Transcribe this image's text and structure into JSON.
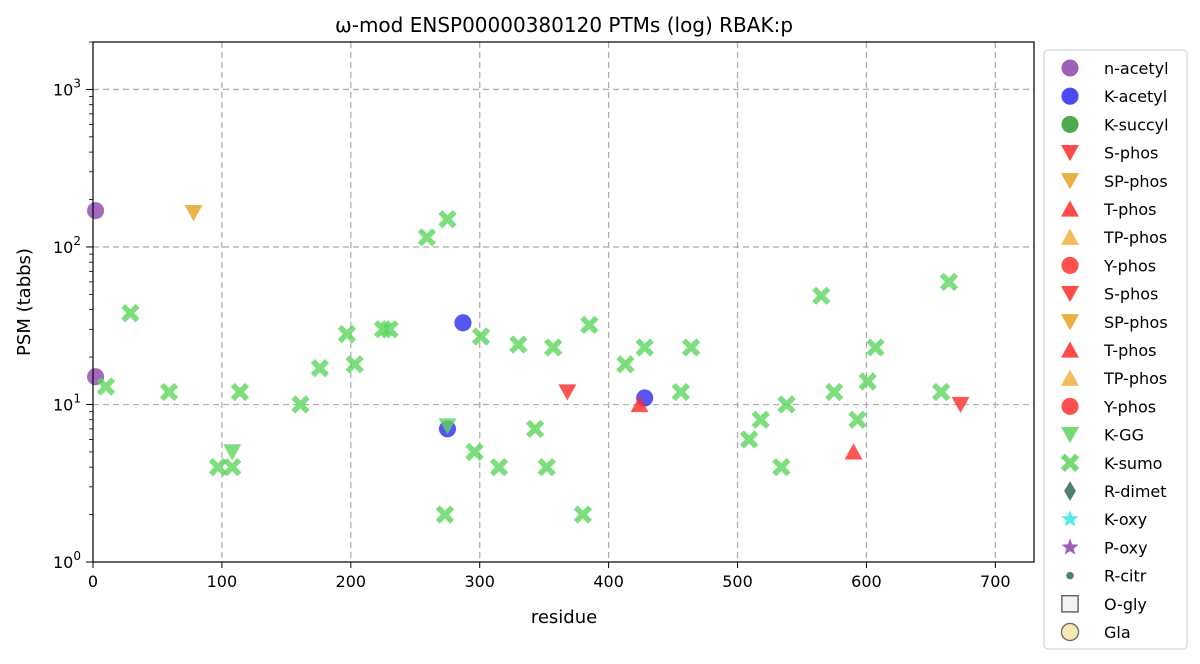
{
  "chart_data": {
    "type": "scatter",
    "title": "ω-mod ENSP00000380120 PTMs (log) RBAK:p",
    "xlabel": "residue",
    "ylabel": "PSM (tabbs)",
    "xlim": [
      0,
      730
    ],
    "ylim": [
      1,
      2000
    ],
    "yscale": "log",
    "grid": true,
    "legend_position": "outside-right",
    "x_ticks": [
      "0",
      "100",
      "200",
      "300",
      "400",
      "500",
      "600",
      "700"
    ],
    "y_ticks": [
      {
        "value": 1,
        "base": "10",
        "exp": "0"
      },
      {
        "value": 10,
        "base": "10",
        "exp": "1"
      },
      {
        "value": 100,
        "base": "10",
        "exp": "2"
      },
      {
        "value": 1000,
        "base": "10",
        "exp": "3"
      }
    ],
    "series": [
      {
        "name": "n-acetyl",
        "marker": "circle",
        "color": "#8e44ad",
        "points": [
          [
            2,
            170
          ],
          [
            2,
            15
          ]
        ]
      },
      {
        "name": "K-acetyl",
        "marker": "circle",
        "color": "#2b2bef",
        "points": [
          [
            287,
            33
          ],
          [
            275,
            7
          ],
          [
            428,
            11
          ]
        ]
      },
      {
        "name": "K-succyl",
        "marker": "circle",
        "color": "#2e9b2e",
        "points": []
      },
      {
        "name": "S-phos",
        "marker": "triangle-down",
        "color": "#ff2a2a",
        "points": [
          [
            368,
            12
          ],
          [
            673,
            10
          ]
        ]
      },
      {
        "name": "SP-phos",
        "marker": "triangle-down",
        "color": "#e8a020",
        "points": [
          [
            78,
            165
          ]
        ]
      },
      {
        "name": "T-phos",
        "marker": "triangle-up",
        "color": "#ff2a2a",
        "points": [
          [
            424,
            10
          ],
          [
            590,
            5
          ]
        ]
      },
      {
        "name": "TP-phos",
        "marker": "triangle-up",
        "color": "#f0b040",
        "points": []
      },
      {
        "name": "Y-phos",
        "marker": "circle",
        "color": "#ff3030",
        "points": []
      },
      {
        "name": "S-phos",
        "marker": "triangle-down",
        "color": "#ff2a2a",
        "points": []
      },
      {
        "name": "SP-phos",
        "marker": "triangle-down",
        "color": "#e8a020",
        "points": []
      },
      {
        "name": "T-phos",
        "marker": "triangle-up",
        "color": "#ff2a2a",
        "points": []
      },
      {
        "name": "TP-phos",
        "marker": "triangle-up",
        "color": "#f0b040",
        "points": []
      },
      {
        "name": "Y-phos",
        "marker": "circle",
        "color": "#ff3030",
        "points": []
      },
      {
        "name": "K-GG",
        "marker": "triangle-down",
        "color": "#5cd65c",
        "points": [
          [
            108,
            5
          ],
          [
            275,
            7.3
          ]
        ]
      },
      {
        "name": "K-sumo",
        "marker": "x",
        "color": "#5cd65c",
        "points": [
          [
            10,
            13
          ],
          [
            29,
            38
          ],
          [
            59,
            12
          ],
          [
            97,
            4
          ],
          [
            108,
            4
          ],
          [
            114,
            12
          ],
          [
            161,
            10
          ],
          [
            176,
            17
          ],
          [
            197,
            28
          ],
          [
            203,
            18
          ],
          [
            225,
            30
          ],
          [
            230,
            30
          ],
          [
            259,
            115
          ],
          [
            275,
            150
          ],
          [
            273,
            2
          ],
          [
            296,
            5
          ],
          [
            301,
            27
          ],
          [
            315,
            4
          ],
          [
            330,
            24
          ],
          [
            343,
            7
          ],
          [
            352,
            4
          ],
          [
            357,
            23
          ],
          [
            380,
            2
          ],
          [
            385,
            32
          ],
          [
            413,
            18
          ],
          [
            428,
            23
          ],
          [
            456,
            12
          ],
          [
            464,
            23
          ],
          [
            509,
            6
          ],
          [
            518,
            8
          ],
          [
            534,
            4
          ],
          [
            538,
            10
          ],
          [
            565,
            49
          ],
          [
            575,
            12
          ],
          [
            593,
            8
          ],
          [
            601,
            14
          ],
          [
            607,
            23
          ],
          [
            658,
            12
          ],
          [
            664,
            60
          ]
        ]
      },
      {
        "name": "R-dimet",
        "marker": "diamond",
        "color": "#2e6b4f",
        "points": []
      },
      {
        "name": "K-oxy",
        "marker": "star",
        "color": "#33e6e6",
        "points": []
      },
      {
        "name": "P-oxy",
        "marker": "star",
        "color": "#8e44ad",
        "points": []
      },
      {
        "name": "R-citr",
        "marker": "dot",
        "color": "#2e6b4f",
        "points": []
      },
      {
        "name": "O-gly",
        "marker": "square",
        "color": "#f2f2f2",
        "points": []
      },
      {
        "name": "Gla",
        "marker": "circle-outline",
        "color": "#f5e6a8",
        "points": []
      }
    ]
  }
}
